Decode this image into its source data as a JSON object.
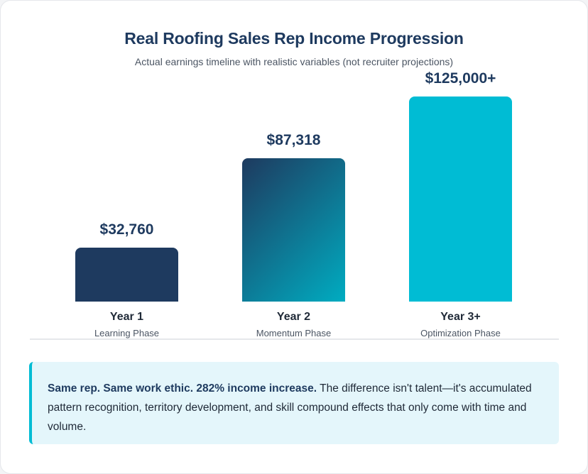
{
  "header": {
    "title": "Real Roofing Sales Rep Income Progression",
    "subtitle": "Actual earnings timeline with realistic variables (not recruiter projections)"
  },
  "chart_data": {
    "type": "bar",
    "title": "Real Roofing Sales Rep Income Progression",
    "subtitle": "Actual earnings timeline with realistic variables (not recruiter projections)",
    "categories": [
      "Year 1",
      "Year 2",
      "Year 3+"
    ],
    "subcategories": [
      "Learning Phase",
      "Momentum Phase",
      "Optimization Phase"
    ],
    "values": [
      32760,
      87318,
      125000
    ],
    "value_labels": [
      "$32,760",
      "$87,318",
      "$125,000+"
    ],
    "ylim": [
      0,
      125000
    ],
    "grid": false,
    "legend": "none",
    "colors": {
      "year1": "#1e3a5f",
      "year2_start": "#1e3a5f",
      "year2_end": "#00acc1",
      "year3": "#00bcd4"
    }
  },
  "callout": {
    "bold_text": "Same rep. Same work ethic. 282% income increase.",
    "body_text": " The difference isn't talent—it's accumulated pattern recognition, territory development, and skill compound effects that only come with time and volume."
  },
  "colors": {
    "title": "#1e3a5f",
    "accent": "#00bcd4",
    "callout_bg": "#e4f6fb"
  }
}
